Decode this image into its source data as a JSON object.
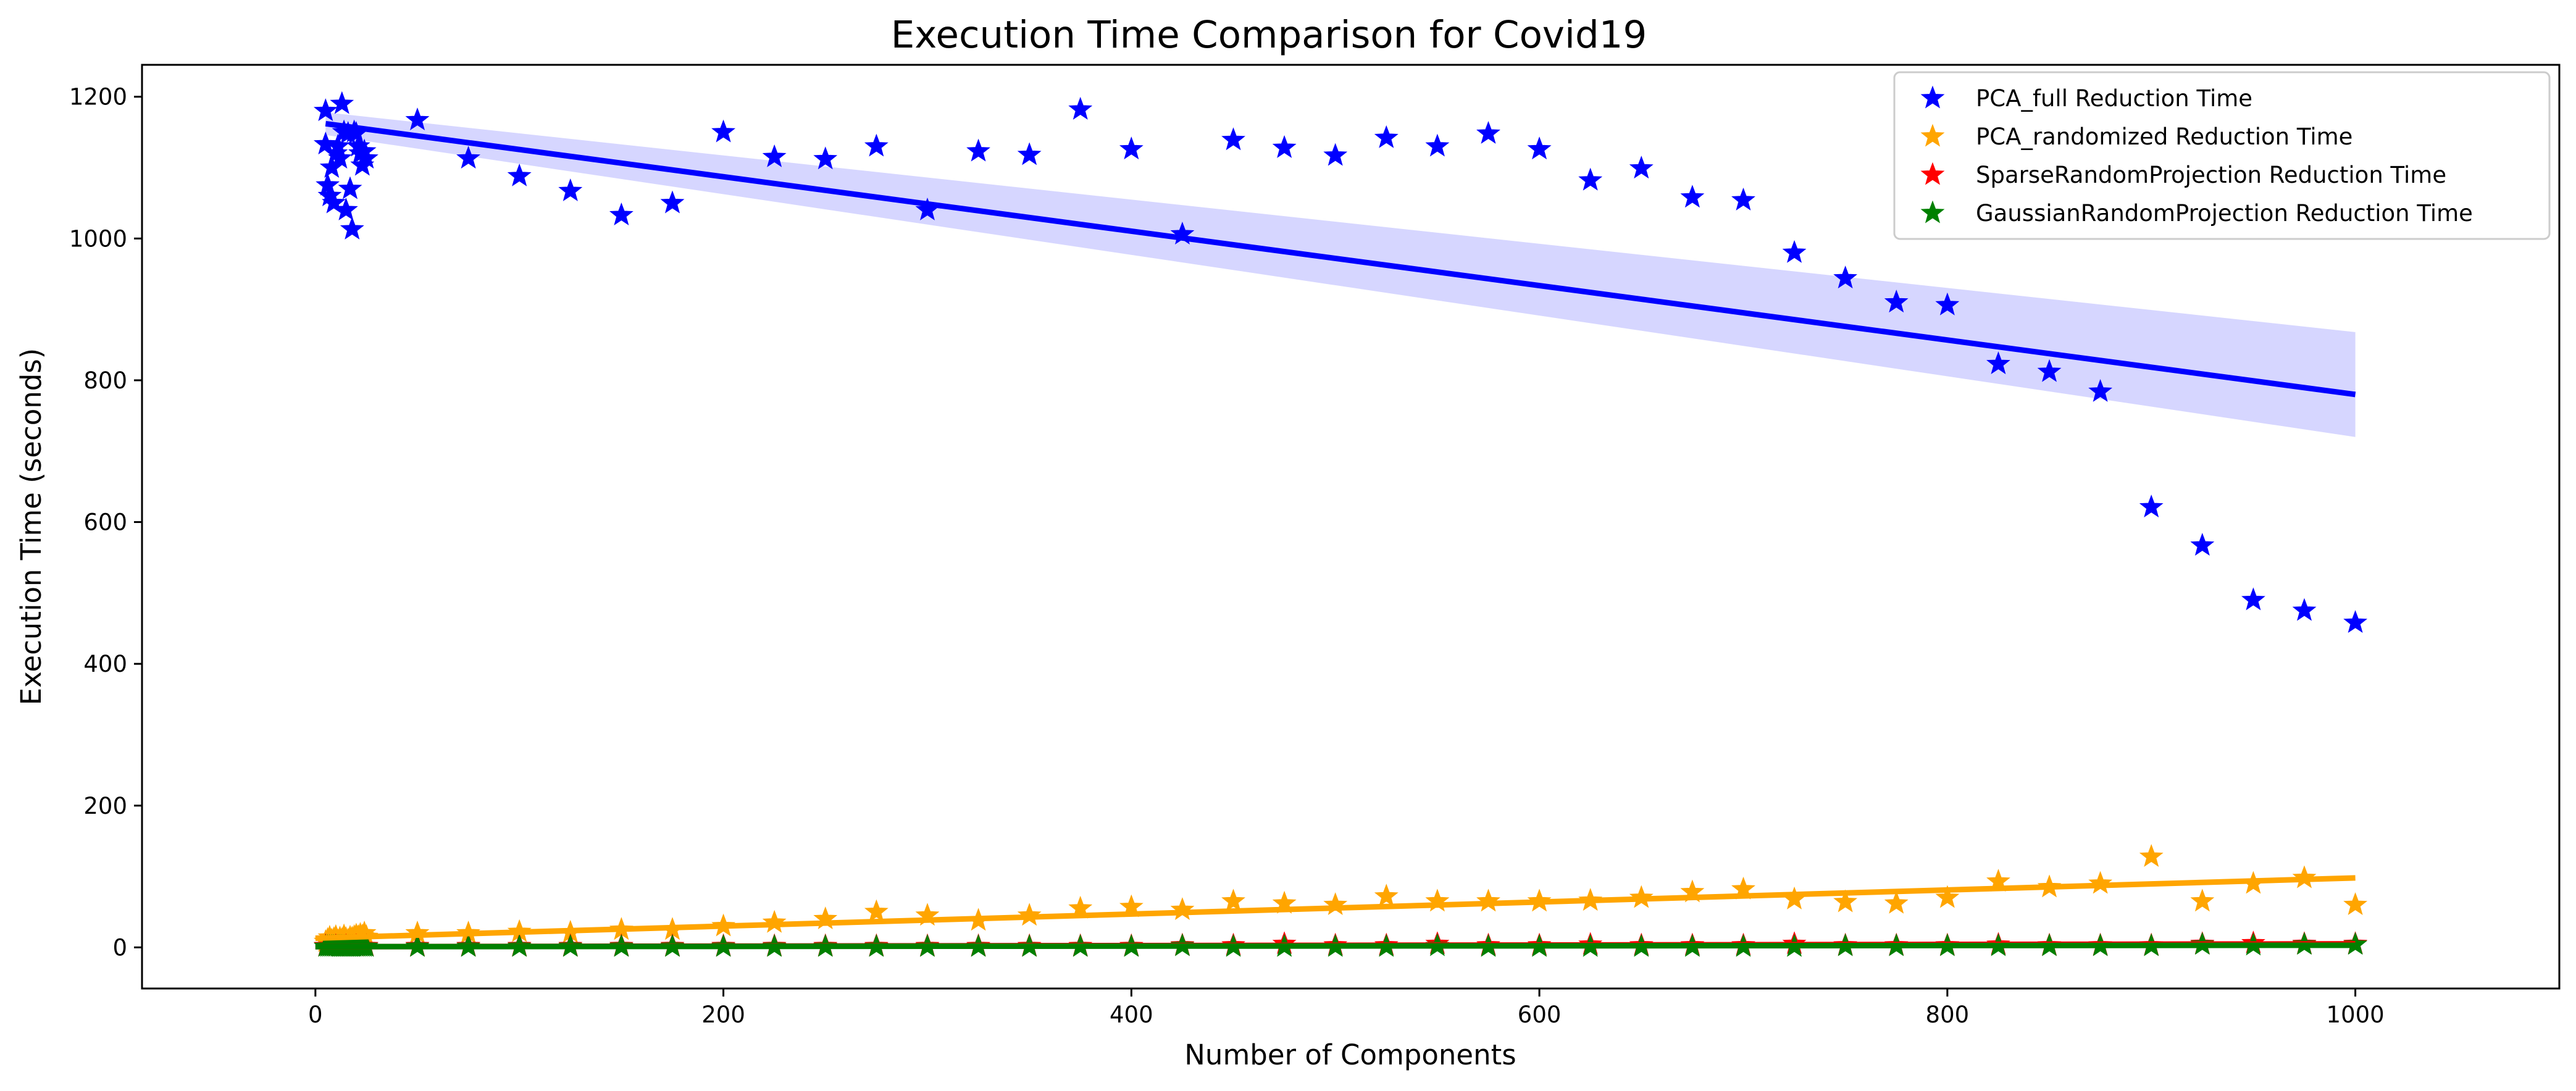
{
  "chart_data": {
    "type": "scatter",
    "title": "Execution Time Comparison for Covid19",
    "xlabel": "Number of Components",
    "ylabel": "Execution Time (seconds)",
    "xlim": [
      -85,
      1100
    ],
    "ylim": [
      -58,
      1245
    ],
    "xticks": [
      0,
      200,
      400,
      600,
      800,
      1000
    ],
    "yticks": [
      0,
      200,
      400,
      600,
      800,
      1000,
      1200
    ],
    "grid": false,
    "legend_position": "top-right",
    "series": [
      {
        "name": "PCA_full Reduction Time",
        "color": "#0000ff",
        "marker": "star-marker",
        "points": [
          [
            5,
            1180
          ],
          [
            5,
            1133
          ],
          [
            6,
            1075
          ],
          [
            7,
            1060
          ],
          [
            8,
            1100
          ],
          [
            9,
            1050
          ],
          [
            10,
            1120
          ],
          [
            11,
            1130
          ],
          [
            12,
            1113
          ],
          [
            13,
            1190
          ],
          [
            14,
            1150
          ],
          [
            15,
            1040
          ],
          [
            16,
            1148
          ],
          [
            17,
            1070
          ],
          [
            18,
            1013
          ],
          [
            19,
            1150
          ],
          [
            20,
            1148
          ],
          [
            21,
            1130
          ],
          [
            22,
            1120
          ],
          [
            23,
            1103
          ],
          [
            24,
            1123
          ],
          [
            25,
            1113
          ],
          [
            50,
            1167
          ],
          [
            75,
            1113
          ],
          [
            100,
            1088
          ],
          [
            125,
            1067
          ],
          [
            150,
            1033
          ],
          [
            175,
            1050
          ],
          [
            200,
            1150
          ],
          [
            225,
            1115
          ],
          [
            250,
            1112
          ],
          [
            275,
            1130
          ],
          [
            300,
            1040
          ],
          [
            325,
            1123
          ],
          [
            350,
            1118
          ],
          [
            375,
            1182
          ],
          [
            400,
            1126
          ],
          [
            425,
            1006
          ],
          [
            450,
            1139
          ],
          [
            475,
            1128
          ],
          [
            500,
            1117
          ],
          [
            525,
            1142
          ],
          [
            550,
            1130
          ],
          [
            575,
            1148
          ],
          [
            600,
            1126
          ],
          [
            625,
            1082
          ],
          [
            650,
            1099
          ],
          [
            675,
            1058
          ],
          [
            700,
            1054
          ],
          [
            725,
            980
          ],
          [
            750,
            944
          ],
          [
            775,
            910
          ],
          [
            800,
            906
          ],
          [
            825,
            823
          ],
          [
            850,
            812
          ],
          [
            875,
            784
          ],
          [
            900,
            621
          ],
          [
            925,
            567
          ],
          [
            950,
            490
          ],
          [
            975,
            475
          ],
          [
            1000,
            458
          ]
        ],
        "fit": {
          "x": [
            5,
            1000
          ],
          "y": [
            1162,
            780
          ]
        },
        "ci": {
          "x": [
            5,
            1000
          ],
          "upper": [
            1178,
            868
          ],
          "lower": [
            1146,
            720
          ]
        }
      },
      {
        "name": "PCA_randomized Reduction Time",
        "color": "#ffa500",
        "marker": "star-marker",
        "points": [
          [
            5,
            8
          ],
          [
            6,
            11
          ],
          [
            7,
            14
          ],
          [
            8,
            10
          ],
          [
            9,
            12
          ],
          [
            10,
            15
          ],
          [
            11,
            9
          ],
          [
            12,
            13
          ],
          [
            13,
            11
          ],
          [
            14,
            16
          ],
          [
            15,
            12
          ],
          [
            16,
            10
          ],
          [
            17,
            14
          ],
          [
            18,
            13
          ],
          [
            19,
            15
          ],
          [
            20,
            17
          ],
          [
            21,
            15
          ],
          [
            22,
            18
          ],
          [
            23,
            16
          ],
          [
            24,
            20
          ],
          [
            25,
            15
          ],
          [
            50,
            20
          ],
          [
            75,
            20
          ],
          [
            100,
            22
          ],
          [
            125,
            21
          ],
          [
            150,
            25
          ],
          [
            175,
            25
          ],
          [
            200,
            30
          ],
          [
            225,
            35
          ],
          [
            250,
            40
          ],
          [
            275,
            50
          ],
          [
            300,
            45
          ],
          [
            325,
            38
          ],
          [
            350,
            45
          ],
          [
            375,
            55
          ],
          [
            400,
            57
          ],
          [
            425,
            53
          ],
          [
            450,
            65
          ],
          [
            475,
            62
          ],
          [
            500,
            60
          ],
          [
            525,
            72
          ],
          [
            550,
            65
          ],
          [
            575,
            65
          ],
          [
            600,
            65
          ],
          [
            625,
            66
          ],
          [
            650,
            70
          ],
          [
            675,
            78
          ],
          [
            700,
            82
          ],
          [
            725,
            68
          ],
          [
            750,
            64
          ],
          [
            775,
            62
          ],
          [
            800,
            70
          ],
          [
            825,
            93
          ],
          [
            850,
            85
          ],
          [
            875,
            90
          ],
          [
            900,
            128
          ],
          [
            925,
            65
          ],
          [
            950,
            90
          ],
          [
            975,
            98
          ],
          [
            1000,
            60
          ]
        ],
        "fit": {
          "x": [
            0,
            1000
          ],
          "y": [
            13,
            98
          ]
        }
      },
      {
        "name": "SparseRandomProjection Reduction Time",
        "color": "#ff0000",
        "marker": "star-marker",
        "points": [
          [
            5,
            2
          ],
          [
            10,
            2
          ],
          [
            15,
            2
          ],
          [
            20,
            2
          ],
          [
            25,
            2
          ],
          [
            50,
            2
          ],
          [
            75,
            2
          ],
          [
            100,
            2
          ],
          [
            125,
            2
          ],
          [
            150,
            2
          ],
          [
            175,
            2
          ],
          [
            200,
            2
          ],
          [
            225,
            2
          ],
          [
            250,
            2
          ],
          [
            275,
            2
          ],
          [
            300,
            2
          ],
          [
            325,
            2
          ],
          [
            350,
            2
          ],
          [
            375,
            2
          ],
          [
            400,
            2
          ],
          [
            425,
            3
          ],
          [
            450,
            3
          ],
          [
            475,
            5
          ],
          [
            500,
            3
          ],
          [
            525,
            3
          ],
          [
            550,
            5
          ],
          [
            575,
            3
          ],
          [
            600,
            3
          ],
          [
            625,
            4
          ],
          [
            650,
            3
          ],
          [
            675,
            3
          ],
          [
            700,
            3
          ],
          [
            725,
            5
          ],
          [
            750,
            3
          ],
          [
            775,
            3
          ],
          [
            800,
            3
          ],
          [
            825,
            4
          ],
          [
            850,
            3
          ],
          [
            875,
            3
          ],
          [
            900,
            3
          ],
          [
            925,
            5
          ],
          [
            950,
            6
          ],
          [
            975,
            5
          ],
          [
            1000,
            5
          ]
        ],
        "fit": {
          "x": [
            0,
            1000
          ],
          "y": [
            1,
            5
          ]
        }
      },
      {
        "name": "GaussianRandomProjection Reduction Time",
        "color": "#008000",
        "marker": "star-marker",
        "points": [
          [
            5,
            1
          ],
          [
            6,
            1
          ],
          [
            7,
            1
          ],
          [
            8,
            1
          ],
          [
            9,
            1
          ],
          [
            10,
            1
          ],
          [
            11,
            1
          ],
          [
            12,
            1
          ],
          [
            13,
            1
          ],
          [
            14,
            1
          ],
          [
            15,
            1
          ],
          [
            16,
            1
          ],
          [
            17,
            1
          ],
          [
            18,
            1
          ],
          [
            19,
            1
          ],
          [
            20,
            1
          ],
          [
            21,
            1
          ],
          [
            22,
            1
          ],
          [
            23,
            1
          ],
          [
            24,
            1
          ],
          [
            25,
            1
          ],
          [
            50,
            1
          ],
          [
            75,
            1
          ],
          [
            100,
            1
          ],
          [
            125,
            1
          ],
          [
            150,
            1
          ],
          [
            175,
            1
          ],
          [
            200,
            1
          ],
          [
            225,
            1
          ],
          [
            250,
            1
          ],
          [
            275,
            1
          ],
          [
            300,
            1
          ],
          [
            325,
            1
          ],
          [
            350,
            1
          ],
          [
            375,
            1
          ],
          [
            400,
            1
          ],
          [
            425,
            2
          ],
          [
            450,
            1
          ],
          [
            475,
            1
          ],
          [
            500,
            1
          ],
          [
            525,
            1
          ],
          [
            550,
            2
          ],
          [
            575,
            1
          ],
          [
            600,
            1
          ],
          [
            625,
            1
          ],
          [
            650,
            1
          ],
          [
            675,
            1
          ],
          [
            700,
            1
          ],
          [
            725,
            1
          ],
          [
            750,
            2
          ],
          [
            775,
            2
          ],
          [
            800,
            2
          ],
          [
            825,
            2
          ],
          [
            850,
            2
          ],
          [
            875,
            2
          ],
          [
            900,
            2
          ],
          [
            925,
            4
          ],
          [
            950,
            3
          ],
          [
            975,
            4
          ],
          [
            1000,
            4
          ]
        ],
        "fit": {
          "x": [
            0,
            1000
          ],
          "y": [
            1,
            3
          ]
        }
      }
    ]
  }
}
